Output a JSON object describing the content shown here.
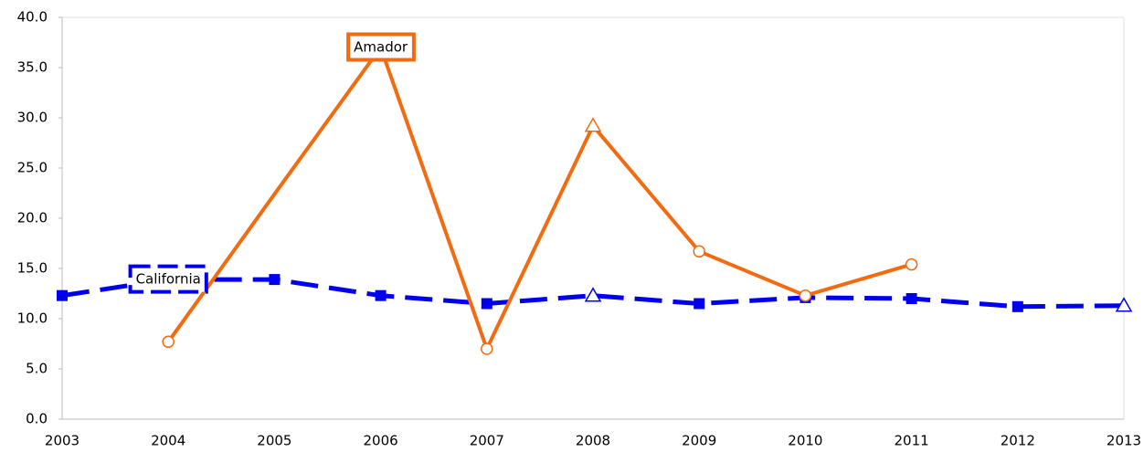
{
  "chart_data": {
    "type": "line",
    "categories": [
      "2003",
      "2004",
      "2005",
      "2006",
      "2007",
      "2008",
      "2009",
      "2010",
      "2011",
      "2012",
      "2013"
    ],
    "series": [
      {
        "name": "California",
        "color": "#0000ee",
        "dashed": true,
        "values": [
          12.3,
          13.9,
          13.9,
          12.3,
          11.5,
          12.3,
          11.5,
          12.1,
          12.0,
          11.2,
          11.3
        ],
        "markers": [
          "square",
          "square",
          "square",
          "square",
          "square",
          "triangle",
          "square",
          "square",
          "square",
          "square",
          "triangle"
        ]
      },
      {
        "name": "Amador",
        "color": "#f26b10",
        "dashed": false,
        "values": [
          null,
          7.7,
          22.4,
          37.0,
          7.0,
          29.2,
          16.7,
          12.3,
          15.4,
          null,
          null
        ],
        "markers": [
          "none",
          "circle",
          "none",
          "circle",
          "circle",
          "triangle",
          "circle",
          "circle",
          "circle",
          "none",
          "none"
        ]
      }
    ],
    "annotations": [
      {
        "text": "Amador",
        "series": 1,
        "index": 3
      },
      {
        "text": "California",
        "series": 0,
        "index": 1
      }
    ],
    "ylim": [
      0,
      40
    ],
    "yticks": [
      {
        "value": 0,
        "label": "0.0"
      },
      {
        "value": 5,
        "label": "5.0"
      },
      {
        "value": 10,
        "label": "10.0"
      },
      {
        "value": 15,
        "label": "15.0"
      },
      {
        "value": 20,
        "label": "20.0"
      },
      {
        "value": 25,
        "label": "25.0"
      },
      {
        "value": 30,
        "label": "30.0"
      },
      {
        "value": 35,
        "label": "35.0"
      },
      {
        "value": 40,
        "label": "40.0"
      }
    ],
    "grid": false
  }
}
